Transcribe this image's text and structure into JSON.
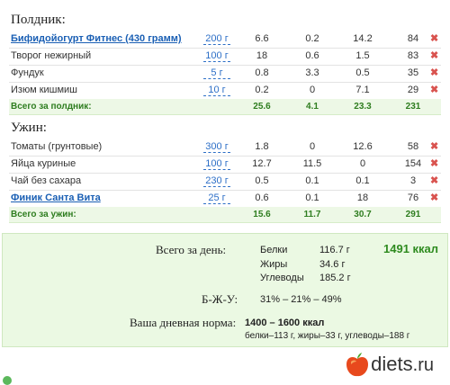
{
  "snack": {
    "title": "Полдник:",
    "items": [
      {
        "name": "Бифидойогурт Фитнес (430 грамм)",
        "qty": "200 г",
        "protein": "6.6",
        "fat": "0.2",
        "carbs": "14.2",
        "kcal": "84",
        "link": true
      },
      {
        "name": "Творог нежирный",
        "qty": "100 г",
        "protein": "18",
        "fat": "0.6",
        "carbs": "1.5",
        "kcal": "83",
        "link": false
      },
      {
        "name": "Фундук",
        "qty": "5 г",
        "protein": "0.8",
        "fat": "3.3",
        "carbs": "0.5",
        "kcal": "35",
        "link": false
      },
      {
        "name": "Изюм кишмиш",
        "qty": "10 г",
        "protein": "0.2",
        "fat": "0",
        "carbs": "7.1",
        "kcal": "29",
        "link": false
      }
    ],
    "total": {
      "label": "Всего за полдник:",
      "protein": "25.6",
      "fat": "4.1",
      "carbs": "23.3",
      "kcal": "231"
    }
  },
  "dinner": {
    "title": "Ужин:",
    "items": [
      {
        "name": "Томаты (грунтовые)",
        "qty": "300 г",
        "protein": "1.8",
        "fat": "0",
        "carbs": "12.6",
        "kcal": "58",
        "link": false
      },
      {
        "name": "Яйца куриные",
        "qty": "100 г",
        "protein": "12.7",
        "fat": "11.5",
        "carbs": "0",
        "kcal": "154",
        "link": false
      },
      {
        "name": "Чай без сахара",
        "qty": "230 г",
        "protein": "0.5",
        "fat": "0.1",
        "carbs": "0.1",
        "kcal": "3",
        "link": false
      },
      {
        "name": "Финик Санта Вита",
        "qty": "25 г",
        "protein": "0.6",
        "fat": "0.1",
        "carbs": "18",
        "kcal": "76",
        "link": true
      }
    ],
    "total": {
      "label": "Всего за ужин:",
      "protein": "15.6",
      "fat": "11.7",
      "carbs": "30.7",
      "kcal": "291"
    }
  },
  "delete_glyph": "✖",
  "summary": {
    "day_label": "Всего за день:",
    "protein_label": "Белки",
    "protein_value": "116.7 г",
    "fat_label": "Жиры",
    "fat_value": "34.6 г",
    "carbs_label": "Углеводы",
    "carbs_value": "185.2 г",
    "kcal_total": "1491 ккал",
    "ratio_label": "Б-Ж-У:",
    "ratio_value": "31% – 21% – 49%",
    "norm_label": "Ваша дневная норма:",
    "norm_kcal": "1400 – 1600 ккал",
    "norm_detail": "белки–113 г, жиры–33 г, углеводы–188 г"
  },
  "logo": {
    "name": "diets",
    "tld": ".ru"
  },
  "colors": {
    "link": "#1a5fb4",
    "total_green": "#2e7d1f",
    "kcal_green": "#2e8b1f",
    "delete_red": "#d9534f",
    "summary_bg": "#ebf9e3"
  }
}
